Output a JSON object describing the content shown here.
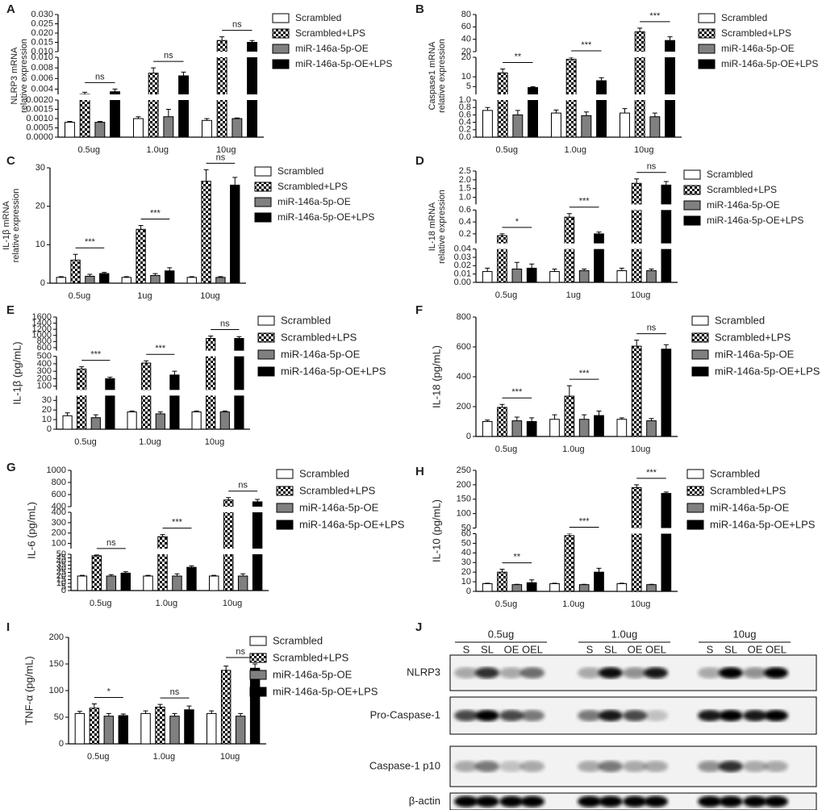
{
  "chart_data": [
    {
      "panel": "A",
      "type": "bar",
      "ylabel": [
        "NLRP3  mRNA",
        "relative expression"
      ],
      "categories": [
        "0.5ug",
        "1.0ug",
        "10ug"
      ],
      "segments": [
        {
          "ylim": [
            0,
            0.002
          ],
          "yticks": [
            {
              "value": 0,
              "label": "0.0000"
            },
            0.0005,
            {
              "value": 0.001,
              "label": "0.0010"
            },
            0.0015,
            {
              "value": 0.002,
              "label": "0.0020"
            }
          ]
        },
        {
          "ylim": [
            0.003,
            0.01
          ],
          "yticks": [
            0.004,
            0.006,
            0.008,
            {
              "value": 0.01,
              "label": "0.010"
            }
          ]
        },
        {
          "ylim": [
            0.01,
            0.03
          ],
          "yticks": [
            {
              "value": 0.01,
              "label": "0.010"
            },
            0.015,
            {
              "value": 0.02,
              "label": "0.020"
            },
            0.025,
            {
              "value": 0.03,
              "label": "0.030"
            }
          ]
        }
      ],
      "series": [
        {
          "name": "Scrambled",
          "color": "#ffffff",
          "values": [
            0.0008,
            0.001,
            0.0009
          ],
          "errors": [
            5e-05,
            0.0001,
            0.0001
          ]
        },
        {
          "name": "Scrambled+LPS",
          "color": "#000000",
          "pattern": "checker",
          "values": [
            0.003,
            0.007,
            0.016
          ],
          "errors": [
            0.0004,
            0.001,
            0.002
          ]
        },
        {
          "name": "miR-146a-5p-OE",
          "color": "#808080",
          "values": [
            0.0008,
            0.0011,
            0.001
          ],
          "errors": [
            5e-05,
            0.0004,
            3e-05
          ]
        },
        {
          "name": "miR-146a-5p-OE+LPS",
          "color": "#000000",
          "values": [
            0.0035,
            0.0065,
            0.015
          ],
          "errors": [
            0.0005,
            0.0007,
            0.001
          ]
        }
      ],
      "significance": [
        "ns",
        "ns",
        "ns"
      ]
    },
    {
      "panel": "B",
      "type": "bar",
      "ylabel": [
        "Caspase1  mRNA",
        "relative expression"
      ],
      "categories": [
        "0.5ug",
        "1.0ug",
        "10ug"
      ],
      "segments": [
        {
          "ylim": [
            0,
            1
          ],
          "yticks": [
            {
              "value": 0,
              "label": "0.0"
            },
            0.2,
            0.4,
            0.6,
            0.8,
            {
              "value": 1,
              "label": "1.0"
            }
          ]
        },
        {
          "ylim": [
            1,
            20
          ],
          "yticks": [
            5,
            10,
            20
          ]
        },
        {
          "ylim": [
            20,
            80
          ],
          "yticks": [
            20,
            40,
            60,
            80
          ]
        }
      ],
      "series": [
        {
          "name": "Scrambled",
          "color": "#ffffff",
          "values": [
            0.72,
            0.65,
            0.65
          ],
          "errors": [
            0.08,
            0.08,
            0.12
          ]
        },
        {
          "name": "Scrambled+LPS",
          "color": "#000000",
          "pattern": "checker",
          "values": [
            12,
            19,
            52
          ],
          "errors": [
            2,
            1,
            6
          ]
        },
        {
          "name": "miR-146a-5p-OE",
          "color": "#808080",
          "values": [
            0.6,
            0.58,
            0.55
          ],
          "errors": [
            0.12,
            0.1,
            0.1
          ]
        },
        {
          "name": "miR-146a-5p-OE+LPS",
          "color": "#000000",
          "values": [
            4.5,
            8,
            38
          ],
          "errors": [
            0.5,
            1.5,
            6
          ]
        }
      ],
      "significance": [
        "**",
        "***",
        "***"
      ]
    },
    {
      "panel": "C",
      "type": "bar",
      "ylabel": [
        "IL-1β mRNA",
        "relative expression"
      ],
      "categories": [
        "0.5ug",
        "1ug",
        "10ug"
      ],
      "ylim": [
        0,
        30
      ],
      "yticks": [
        0,
        10,
        20,
        30
      ],
      "series": [
        {
          "name": "Scrambled",
          "color": "#ffffff",
          "values": [
            1.5,
            1.5,
            1.5
          ],
          "errors": [
            0.2,
            0.2,
            0.2
          ]
        },
        {
          "name": "Scrambled+LPS",
          "color": "#000000",
          "pattern": "checker",
          "values": [
            6,
            14,
            26.5
          ],
          "errors": [
            1.5,
            1,
            3
          ]
        },
        {
          "name": "miR-146a-5p-OE",
          "color": "#808080",
          "values": [
            1.8,
            2,
            1.5
          ],
          "errors": [
            0.5,
            0.5,
            0.2
          ]
        },
        {
          "name": "miR-146a-5p-OE+LPS",
          "color": "#000000",
          "values": [
            2.5,
            3.2,
            25.5
          ],
          "errors": [
            0.3,
            0.8,
            2
          ]
        }
      ],
      "significance": [
        "***",
        "***",
        "ns"
      ]
    },
    {
      "panel": "D",
      "type": "bar",
      "ylabel": [
        "IL-18 mRNA",
        "relative expression"
      ],
      "categories": [
        "0.5ug",
        "1ug",
        "10ug"
      ],
      "segments": [
        {
          "ylim": [
            0,
            0.04
          ],
          "yticks": [
            {
              "value": 0,
              "label": "0.00"
            },
            0.01,
            0.02,
            0.03,
            0.04
          ]
        },
        {
          "ylim": [
            0.04,
            0.6
          ],
          "yticks": [
            0.2,
            0.4,
            0.6
          ]
        },
        {
          "ylim": [
            0.6,
            2.5
          ],
          "yticks": [
            {
              "value": 1,
              "label": "1.0"
            },
            1.5,
            {
              "value": 2,
              "label": "2.0"
            },
            2.5
          ]
        }
      ],
      "series": [
        {
          "name": "Scrambled",
          "color": "#ffffff",
          "values": [
            0.013,
            0.013,
            0.014
          ],
          "errors": [
            0.004,
            0.003,
            0.003
          ]
        },
        {
          "name": "Scrambled+LPS",
          "color": "#000000",
          "pattern": "checker",
          "values": [
            0.17,
            0.48,
            1.8
          ],
          "errors": [
            0.03,
            0.06,
            0.25
          ]
        },
        {
          "name": "miR-146a-5p-OE",
          "color": "#808080",
          "values": [
            0.016,
            0.014,
            0.014
          ],
          "errors": [
            0.008,
            0.002,
            0.002
          ]
        },
        {
          "name": "miR-146a-5p-OE+LPS",
          "color": "#000000",
          "values": [
            0.017,
            0.2,
            1.7
          ],
          "errors": [
            0.005,
            0.03,
            0.2
          ]
        }
      ],
      "significance": [
        "*",
        "***",
        "ns"
      ]
    },
    {
      "panel": "E",
      "type": "bar",
      "ylabel": [
        "IL-1β (pg/mL)"
      ],
      "categories": [
        "0.5ug",
        "1.0ug",
        "10ug"
      ],
      "segments": [
        {
          "ylim": [
            0,
            35
          ],
          "yticks": [
            0,
            10,
            20,
            30
          ]
        },
        {
          "ylim": [
            50,
            500
          ],
          "yticks": [
            100,
            200,
            300,
            400,
            500
          ]
        },
        {
          "ylim": [
            500,
            1600
          ],
          "yticks": [
            600,
            800,
            1000,
            1200,
            1400,
            1600
          ]
        }
      ],
      "series": [
        {
          "name": "Scrambled",
          "color": "#ffffff",
          "values": [
            14,
            18,
            18
          ],
          "errors": [
            3,
            1,
            1
          ]
        },
        {
          "name": "Scrambled+LPS",
          "color": "#000000",
          "pattern": "checker",
          "values": [
            330,
            410,
            900
          ],
          "errors": [
            30,
            30,
            80
          ]
        },
        {
          "name": "miR-146a-5p-OE",
          "color": "#808080",
          "values": [
            12,
            16,
            18
          ],
          "errors": [
            3,
            2,
            1
          ]
        },
        {
          "name": "miR-146a-5p-OE+LPS",
          "color": "#000000",
          "values": [
            200,
            250,
            900
          ],
          "errors": [
            20,
            50,
            60
          ]
        }
      ],
      "significance": [
        "***",
        "***",
        "ns"
      ]
    },
    {
      "panel": "F",
      "type": "bar",
      "ylabel": [
        "IL-18 (pg/mL)"
      ],
      "categories": [
        "0.5ug",
        "1.0ug",
        "10ug"
      ],
      "ylim": [
        0,
        800
      ],
      "yticks": [
        0,
        200,
        400,
        600,
        800
      ],
      "series": [
        {
          "name": "Scrambled",
          "color": "#ffffff",
          "values": [
            100,
            115,
            115
          ],
          "errors": [
            10,
            30,
            10
          ]
        },
        {
          "name": "Scrambled+LPS",
          "color": "#000000",
          "pattern": "checker",
          "values": [
            195,
            270,
            605
          ],
          "errors": [
            20,
            70,
            40
          ]
        },
        {
          "name": "miR-146a-5p-OE",
          "color": "#808080",
          "values": [
            105,
            115,
            105
          ],
          "errors": [
            25,
            30,
            15
          ]
        },
        {
          "name": "miR-146a-5p-OE+LPS",
          "color": "#000000",
          "values": [
            100,
            140,
            585
          ],
          "errors": [
            25,
            30,
            30
          ]
        }
      ],
      "significance": [
        "***",
        "***",
        "ns"
      ]
    },
    {
      "panel": "G",
      "type": "bar",
      "ylabel": [
        "IL-6 (pg/mL)"
      ],
      "categories": [
        "0.5ug",
        "1.0ug",
        "10ug"
      ],
      "segments": [
        {
          "ylim": [
            0,
            50
          ],
          "yticks": [
            0,
            5,
            10,
            15,
            20,
            25,
            30,
            35,
            40,
            45,
            50
          ]
        },
        {
          "ylim": [
            50,
            400
          ],
          "yticks": [
            100,
            200,
            300,
            400
          ]
        },
        {
          "ylim": [
            400,
            1000
          ],
          "yticks": [
            400,
            600,
            800,
            1000
          ]
        }
      ],
      "series": [
        {
          "name": "Scrambled",
          "color": "#ffffff",
          "values": [
            20,
            20,
            20
          ],
          "errors": [
            1,
            1,
            1
          ]
        },
        {
          "name": "Scrambled+LPS",
          "color": "#000000",
          "pattern": "checker",
          "values": [
            48,
            165,
            510
          ],
          "errors": [
            1,
            20,
            40
          ]
        },
        {
          "name": "miR-146a-5p-OE",
          "color": "#808080",
          "values": [
            20,
            20,
            20
          ],
          "errors": [
            2,
            3,
            3
          ]
        },
        {
          "name": "miR-146a-5p-OE+LPS",
          "color": "#000000",
          "values": [
            24,
            32,
            480
          ],
          "errors": [
            2,
            2,
            40
          ]
        }
      ],
      "significance": [
        "ns",
        "***",
        "ns"
      ]
    },
    {
      "panel": "H",
      "type": "bar",
      "ylabel": [
        "IL-10 (pg/mL)"
      ],
      "categories": [
        "0.5ug",
        "1.0ug",
        "10ug"
      ],
      "segments": [
        {
          "ylim": [
            0,
            60
          ],
          "yticks": [
            0,
            10,
            20,
            30,
            40,
            50,
            60
          ]
        },
        {
          "ylim": [
            50,
            250
          ],
          "yticks": [
            50,
            100,
            150,
            200,
            250
          ]
        }
      ],
      "series": [
        {
          "name": "Scrambled",
          "color": "#ffffff",
          "values": [
            8,
            8,
            8
          ],
          "errors": [
            0.5,
            0.5,
            0.5
          ]
        },
        {
          "name": "Scrambled+LPS",
          "color": "#000000",
          "pattern": "checker",
          "values": [
            20,
            58,
            190
          ],
          "errors": [
            3,
            2,
            10
          ]
        },
        {
          "name": "miR-146a-5p-OE",
          "color": "#808080",
          "values": [
            7,
            7,
            7
          ],
          "errors": [
            0.3,
            0.3,
            0.3
          ]
        },
        {
          "name": "miR-146a-5p-OE+LPS",
          "color": "#000000",
          "values": [
            9,
            20,
            170
          ],
          "errors": [
            3,
            4,
            5
          ]
        }
      ],
      "significance": [
        "**",
        "***",
        "***"
      ]
    },
    {
      "panel": "I",
      "type": "bar",
      "ylabel": [
        "TNF-α (pg/mL)"
      ],
      "categories": [
        "0.5ug",
        "1.0ug",
        "10ug"
      ],
      "ylim": [
        0,
        200
      ],
      "yticks": [
        0,
        50,
        100,
        150,
        200
      ],
      "series": [
        {
          "name": "Scrambled",
          "color": "#ffffff",
          "values": [
            57,
            57,
            57
          ],
          "errors": [
            4,
            5,
            5
          ]
        },
        {
          "name": "Scrambled+LPS",
          "color": "#000000",
          "pattern": "checker",
          "values": [
            67,
            69,
            138
          ],
          "errors": [
            8,
            5,
            8
          ]
        },
        {
          "name": "miR-146a-5p-OE",
          "color": "#808080",
          "values": [
            52,
            52,
            52
          ],
          "errors": [
            5,
            5,
            5
          ]
        },
        {
          "name": "miR-146a-5p-OE+LPS",
          "color": "#000000",
          "values": [
            53,
            64,
            142
          ],
          "errors": [
            3,
            7,
            8
          ]
        }
      ],
      "significance": [
        "*",
        "ns",
        "ns"
      ]
    },
    {
      "panel": "J",
      "type": "blot",
      "groups": [
        "0.5ug",
        "1.0ug",
        "10ug"
      ],
      "lanes": [
        "S",
        "SL",
        "OE",
        "OEL",
        "S",
        "SL",
        "OE",
        "OEL",
        "S",
        "SL",
        "OE",
        "OEL"
      ],
      "rows": [
        "NLRP3",
        "Pro-Caspase-1",
        "Caspase-1 p10",
        "β-actin"
      ]
    }
  ]
}
